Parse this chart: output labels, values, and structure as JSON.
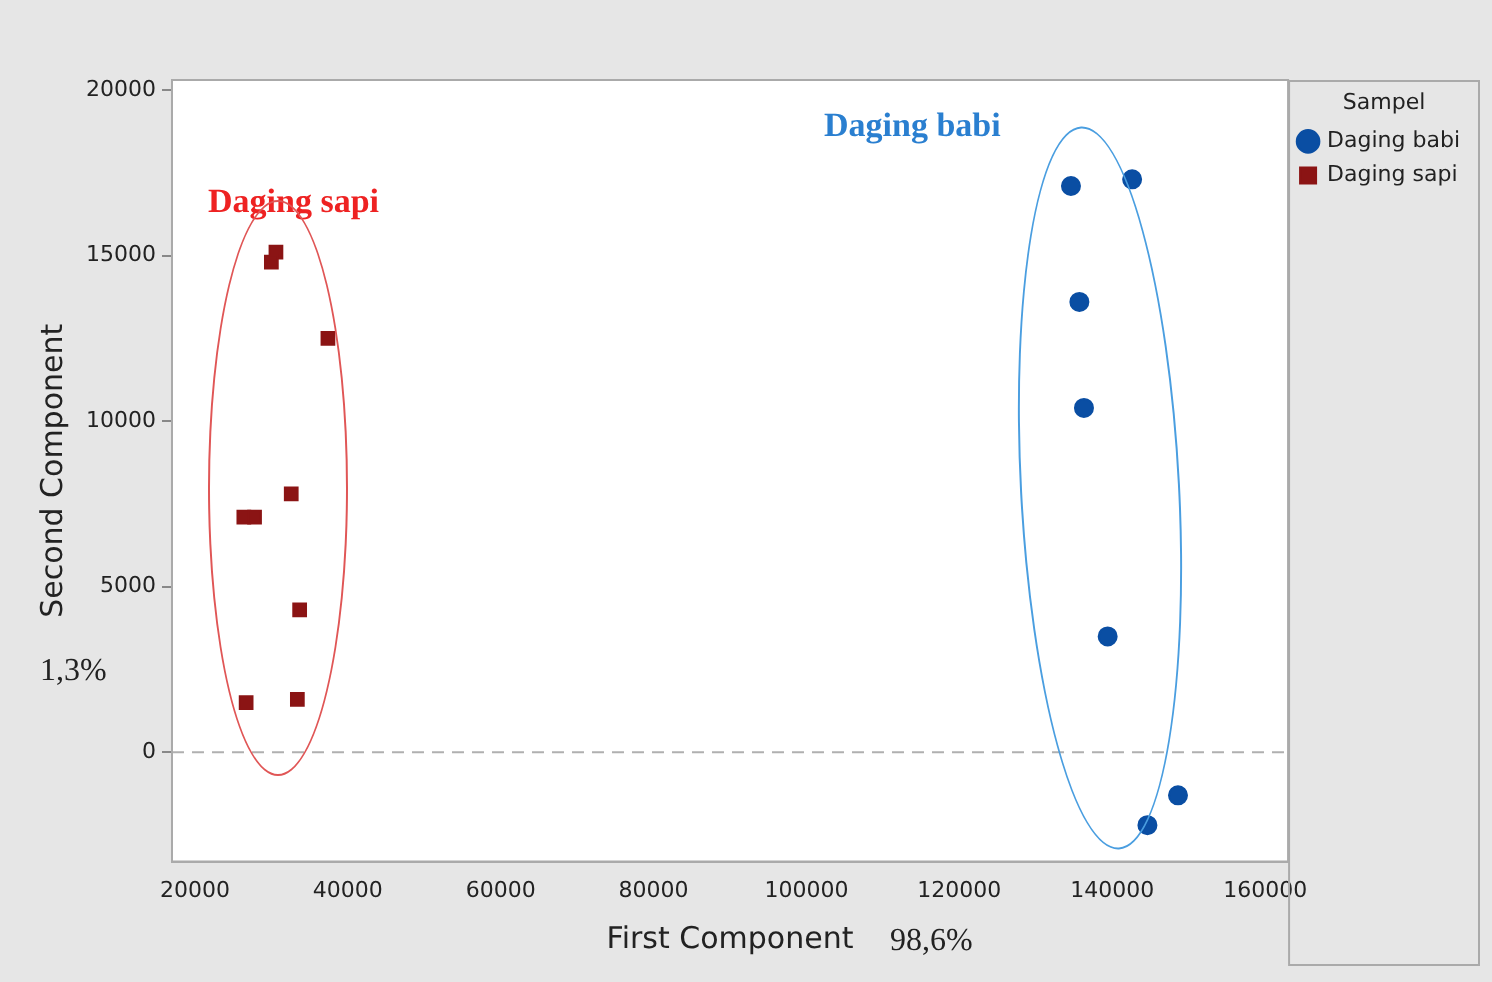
{
  "chart_data": {
    "type": "scatter",
    "xlabel": "First Component",
    "ylabel": "Second Component",
    "legend_title": "Sampel",
    "legend": "top right",
    "grid": false,
    "xlim": [
      17000,
      163000
    ],
    "xticks": [
      20000,
      40000,
      60000,
      80000,
      100000,
      120000,
      140000,
      160000
    ],
    "ylim": [
      -3300,
      20300
    ],
    "yticks": [
      0,
      5000,
      10000,
      15000,
      20000
    ],
    "series": [
      {
        "name": "Daging babi",
        "color": "#0a4ea3",
        "marker": "circle",
        "x": [
          134600,
          142600,
          135700,
          136300,
          139400,
          148600,
          144600
        ],
        "values": [
          17100,
          17300,
          13600,
          10400,
          3500,
          -1300,
          -2200
        ]
      },
      {
        "name": "Daging sapi",
        "color": "#8b1414",
        "marker": "square",
        "x": [
          30600,
          30000,
          37400,
          32600,
          26400,
          27800,
          33700,
          26700,
          33400
        ],
        "values": [
          15100,
          14800,
          12500,
          7800,
          7100,
          7100,
          4300,
          1500,
          1600
        ]
      }
    ],
    "ref_lines": [
      {
        "axis": "y",
        "value": 0,
        "color": "#b0b0b0",
        "line_style": "dashed"
      }
    ],
    "annotations": [
      "Daging babi",
      "Daging sapi",
      "98,6%",
      "1,3%"
    ]
  }
}
